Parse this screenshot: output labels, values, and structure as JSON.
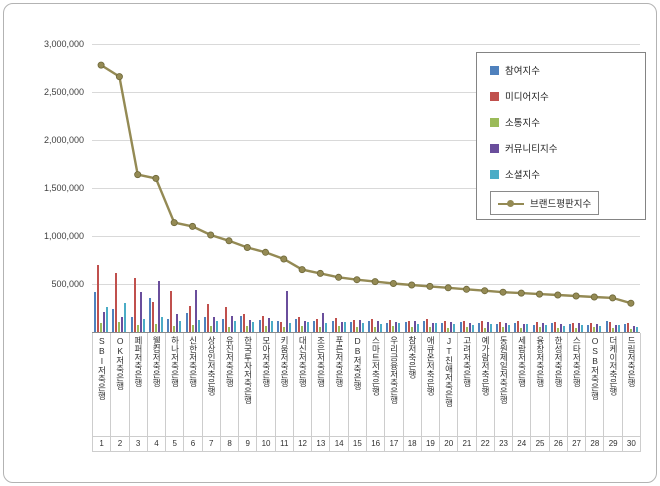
{
  "chart_data": {
    "type": "bar",
    "subtype": "bar+line-combo",
    "title": "",
    "legend_position": "top-right",
    "grid": true,
    "categories": [
      "SBI저축은행",
      "OK저축은행",
      "페퍼저축은행",
      "웰컴저축은행",
      "하나저축은행",
      "신한저축은행",
      "상상인저축은행",
      "유진저축은행",
      "한국투자저축은행",
      "모아저축은행",
      "키움저축은행",
      "대신저축은행",
      "조은저축은행",
      "푸른저축은행",
      "DB저축은행",
      "스마트저축은행",
      "우리금융저축은행",
      "참저축은행",
      "애큐온저축은행",
      "JT친애저축은행",
      "고려저축은행",
      "예가람저축은행",
      "동원제일저축은행",
      "세람저축은행",
      "융창저축은행",
      "한성저축은행",
      "스타저축은행",
      "OSB저축은행",
      "더케이저축은행",
      "드림저축은행"
    ],
    "ranks": [
      "1",
      "2",
      "3",
      "4",
      "5",
      "6",
      "7",
      "8",
      "9",
      "10",
      "11",
      "12",
      "13",
      "14",
      "15",
      "16",
      "17",
      "18",
      "19",
      "20",
      "21",
      "22",
      "23",
      "24",
      "25",
      "26",
      "27",
      "28",
      "29",
      "30"
    ],
    "y_axis": {
      "ylim": [
        0,
        3000000
      ],
      "ticks": [
        "3,000,000",
        "2,500,000",
        "2,000,000",
        "1,500,000",
        "1,000,000",
        "500,000"
      ],
      "tick_values": [
        3000000,
        2500000,
        2000000,
        1500000,
        1000000,
        500000
      ]
    },
    "series": [
      {
        "name": "참여지수",
        "type": "bar",
        "color": "#4F81BD",
        "values": [
          420000,
          240000,
          160000,
          350000,
          140000,
          200000,
          160000,
          140000,
          170000,
          130000,
          110000,
          140000,
          120000,
          110000,
          100000,
          120000,
          95000,
          100000,
          110000,
          90000,
          100000,
          90000,
          85000,
          95000,
          75000,
          90000,
          80000,
          70000,
          110000,
          80000
        ]
      },
      {
        "name": "미디어지수",
        "type": "bar",
        "color": "#C0504D",
        "values": [
          700000,
          620000,
          560000,
          310000,
          430000,
          270000,
          290000,
          260000,
          190000,
          170000,
          100000,
          160000,
          140000,
          150000,
          130000,
          140000,
          130000,
          120000,
          140000,
          110000,
          120000,
          110000,
          100000,
          110000,
          100000,
          105000,
          95000,
          90000,
          100000,
          90000
        ]
      },
      {
        "name": "소통지수",
        "type": "bar",
        "color": "#9BBB59",
        "values": [
          90000,
          100000,
          70000,
          80000,
          60000,
          70000,
          60000,
          50000,
          60000,
          65000,
          50000,
          60000,
          50000,
          60000,
          50000,
          50000,
          60000,
          50000,
          50000,
          40000,
          50000,
          40000,
          50000,
          40000,
          50000,
          40000,
          40000,
          50000,
          40000,
          30000
        ]
      },
      {
        "name": "커뮤니티지수",
        "type": "bar",
        "color": "#6A4E9C",
        "values": [
          210000,
          160000,
          420000,
          530000,
          190000,
          440000,
          160000,
          170000,
          130000,
          150000,
          430000,
          120000,
          200000,
          100000,
          130000,
          110000,
          100000,
          110000,
          90000,
          100000,
          90000,
          100000,
          90000,
          80000,
          90000,
          80000,
          90000,
          80000,
          70000,
          60000
        ]
      },
      {
        "name": "소셜지수",
        "type": "bar",
        "color": "#4BACC6",
        "values": [
          260000,
          300000,
          140000,
          160000,
          120000,
          130000,
          110000,
          120000,
          100000,
          110000,
          90000,
          100000,
          90000,
          100000,
          90000,
          80000,
          90000,
          80000,
          90000,
          80000,
          70000,
          80000,
          70000,
          80000,
          70000,
          60000,
          70000,
          60000,
          70000,
          50000
        ]
      },
      {
        "name": "브랜드평판지수",
        "type": "line",
        "color": "#948A54",
        "values": [
          2780000,
          2660000,
          1640000,
          1600000,
          1140000,
          1100000,
          1010000,
          950000,
          880000,
          830000,
          760000,
          650000,
          610000,
          570000,
          545000,
          525000,
          505000,
          490000,
          475000,
          460000,
          445000,
          430000,
          415000,
          405000,
          395000,
          385000,
          375000,
          365000,
          355000,
          300000
        ]
      }
    ]
  }
}
